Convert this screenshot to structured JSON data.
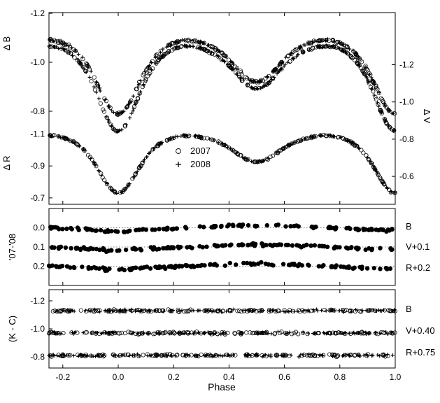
{
  "chart_data": [
    {
      "type": "scatter",
      "panel": "top",
      "xlim": [
        -0.25,
        1.0
      ],
      "x_ticks": [
        "-0.2",
        "0.0",
        "0.2",
        "0.4",
        "0.6",
        "0.8",
        "1.0"
      ],
      "left_axes": [
        {
          "label": "Δ B",
          "ylim": [
            -1.2,
            -0.78
          ],
          "inverted": true,
          "ticks": [
            "-1.2",
            "-1.0",
            "-0.8"
          ]
        },
        {
          "label": "Δ R",
          "ylim": [
            -1.26,
            -0.66
          ],
          "inverted": true,
          "ticks": [
            "-1.1",
            "-0.9",
            "-0.7"
          ]
        }
      ],
      "right_axis": {
        "label": "Δ V",
        "ylim": [
          -1.48,
          -0.45
        ],
        "inverted": true,
        "ticks": [
          "-1.2",
          "-1.0",
          "-0.8",
          "-0.6"
        ]
      },
      "legend": {
        "position": "center",
        "entries": [
          {
            "name": "2007",
            "marker": "open-circle"
          },
          {
            "name": "2008",
            "marker": "plus"
          }
        ]
      },
      "curves": [
        {
          "band": "B",
          "max1": -1.09,
          "min1": -0.78,
          "max2": -1.09,
          "min2": -0.85
        },
        {
          "band": "V",
          "max1": -1.3,
          "min1": -0.83,
          "max2": -1.3,
          "min2": -0.98
        },
        {
          "band": "R",
          "max1": -1.09,
          "min1": -0.72,
          "max2": -1.09,
          "min2": -0.86
        }
      ],
      "sample_points": {
        "phase": [
          -0.24,
          -0.2,
          -0.15,
          -0.1,
          -0.05,
          0.0,
          0.05,
          0.1,
          0.15,
          0.2,
          0.25,
          0.3,
          0.35,
          0.4,
          0.45,
          0.5,
          0.55,
          0.6,
          0.65,
          0.7,
          0.75,
          0.8,
          0.85,
          0.9,
          0.95,
          1.0
        ],
        "series": [
          "2007",
          "2008"
        ]
      }
    },
    {
      "type": "scatter",
      "panel": "middle",
      "ylabel": "'07-'08",
      "ylim": [
        -0.1,
        0.3
      ],
      "inverted": true,
      "y_ticks": [
        "0.0",
        "0.1",
        "0.2"
      ],
      "reference_lines": [
        0.0,
        0.1,
        0.2
      ],
      "series": [
        {
          "name": "B",
          "offset": 0.0
        },
        {
          "name": "V+0.1",
          "offset": 0.1
        },
        {
          "name": "R+0.2",
          "offset": 0.2
        }
      ]
    },
    {
      "type": "scatter",
      "panel": "bottom",
      "ylabel": "(K - C)",
      "xlabel": "Phase",
      "ylim": [
        -1.28,
        -0.72
      ],
      "inverted": true,
      "y_ticks": [
        "-1.2",
        "-1.0",
        "-0.8"
      ],
      "series": [
        {
          "name": "B",
          "level": -1.13
        },
        {
          "name": "V+0.40",
          "level": -0.97
        },
        {
          "name": "R+0.75",
          "level": -0.81
        }
      ]
    }
  ]
}
